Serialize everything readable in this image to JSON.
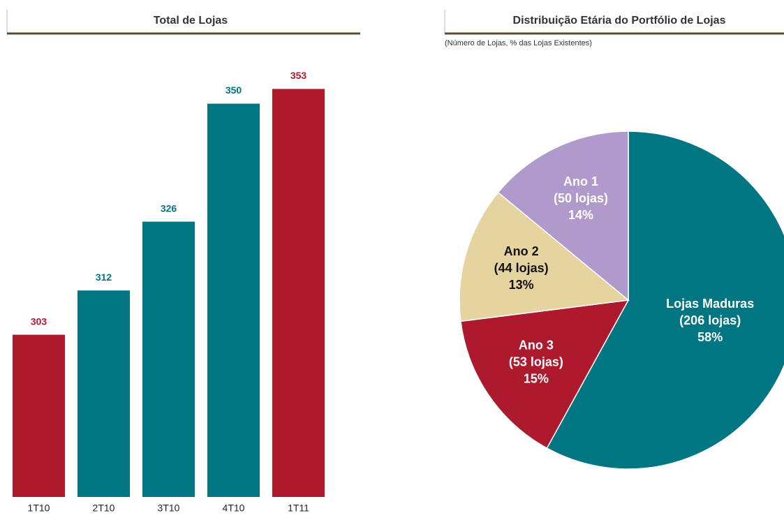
{
  "chart_data": [
    {
      "type": "bar",
      "title": "Total de Lojas",
      "categories": [
        "1T10",
        "2T10",
        "3T10",
        "4T10",
        "1T11"
      ],
      "values": [
        303,
        312,
        326,
        350,
        353
      ],
      "colors": [
        "#ad1a2e",
        "#007682",
        "#007682",
        "#007682",
        "#ad1a2e"
      ],
      "ylim": [
        270,
        362
      ]
    },
    {
      "type": "pie",
      "title": "Distribuição Etária do Portfólio de Lojas",
      "subtitle": "(Número de Lojas, % das Lojas Existentes)",
      "categories": [
        "Lojas Maduras",
        "Ano 3",
        "Ano 2",
        "Ano 1"
      ],
      "values": [
        58,
        15,
        13,
        14
      ],
      "value_labels": [
        "58%",
        "15%",
        "13%",
        "14%"
      ],
      "counts": [
        206,
        53,
        44,
        50
      ],
      "count_labels": [
        "(206  lojas)",
        "(53 lojas)",
        "(44 lojas)",
        "(50 lojas)"
      ],
      "colors": [
        "#007682",
        "#ad1a2e",
        "#e5d3a0",
        "#b09acb"
      ],
      "text_colors": [
        "#ffffff",
        "#ffffff",
        "#111111",
        "#ffffff"
      ]
    }
  ]
}
